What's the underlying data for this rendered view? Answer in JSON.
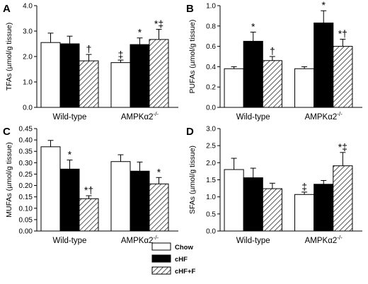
{
  "chart_data": [
    {
      "type": "bar",
      "panel_label": "A",
      "ylabel": "TFAs (µmol/g tissue)",
      "ylim": [
        0,
        4.0
      ],
      "yticks": [
        "0.0",
        "1.0",
        "2.0",
        "3.0",
        "4.0"
      ],
      "categories": [
        "Wild-type",
        "AMPKα2-/-"
      ],
      "series": [
        {
          "name": "Chow",
          "values": [
            2.55,
            1.76
          ],
          "errors": [
            0.37,
            0.1
          ],
          "annotations": [
            "",
            "‡"
          ]
        },
        {
          "name": "cHF",
          "values": [
            2.5,
            2.47
          ],
          "errors": [
            0.3,
            0.26
          ],
          "annotations": [
            "",
            "*"
          ]
        },
        {
          "name": "cHF+F",
          "values": [
            1.83,
            2.67
          ],
          "errors": [
            0.25,
            0.4
          ],
          "annotations": [
            "†",
            "*‡"
          ]
        }
      ]
    },
    {
      "type": "bar",
      "panel_label": "B",
      "ylabel": "PUFAs (µmol/g tissue)",
      "ylim": [
        0,
        1.0
      ],
      "yticks": [
        "0.0",
        "0.2",
        "0.4",
        "0.6",
        "0.8",
        "1.0"
      ],
      "categories": [
        "Wild-type",
        "AMPKα2-/-"
      ],
      "series": [
        {
          "name": "Chow",
          "values": [
            0.38,
            0.38
          ],
          "errors": [
            0.02,
            0.02
          ],
          "annotations": [
            "",
            ""
          ]
        },
        {
          "name": "cHF",
          "values": [
            0.65,
            0.83
          ],
          "errors": [
            0.09,
            0.12
          ],
          "annotations": [
            "*",
            "*"
          ]
        },
        {
          "name": "cHF+F",
          "values": [
            0.46,
            0.6
          ],
          "errors": [
            0.04,
            0.07
          ],
          "annotations": [
            "†",
            "*†"
          ]
        }
      ]
    },
    {
      "type": "bar",
      "panel_label": "C",
      "ylabel": "MUFAs (µmol/g tissue)",
      "ylim": [
        0,
        0.45
      ],
      "yticks": [
        "0.00",
        "0.05",
        "0.10",
        "0.15",
        "0.20",
        "0.25",
        "0.30",
        "0.35",
        "0.40",
        "0.45"
      ],
      "categories": [
        "Wild-type",
        "AMPKα2-/-"
      ],
      "series": [
        {
          "name": "Chow",
          "values": [
            0.37,
            0.305
          ],
          "errors": [
            0.028,
            0.03
          ],
          "annotations": [
            "",
            ""
          ]
        },
        {
          "name": "cHF",
          "values": [
            0.272,
            0.263
          ],
          "errors": [
            0.04,
            0.04
          ],
          "annotations": [
            "*",
            ""
          ]
        },
        {
          "name": "cHF+F",
          "values": [
            0.142,
            0.207
          ],
          "errors": [
            0.013,
            0.028
          ],
          "annotations": [
            "*†",
            "*"
          ]
        }
      ]
    },
    {
      "type": "bar",
      "panel_label": "D",
      "ylabel": "SFAs (µmol/g tissue)",
      "ylim": [
        0,
        3.0
      ],
      "yticks": [
        "0.0",
        "0.5",
        "1.0",
        "1.5",
        "2.0",
        "2.5",
        "3.0"
      ],
      "categories": [
        "Wild-type",
        "AMPKα2-/-"
      ],
      "series": [
        {
          "name": "Chow",
          "values": [
            1.8,
            1.07
          ],
          "errors": [
            0.33,
            0.07
          ],
          "annotations": [
            "",
            "‡"
          ]
        },
        {
          "name": "cHF",
          "values": [
            1.56,
            1.37
          ],
          "errors": [
            0.28,
            0.11
          ],
          "annotations": [
            "",
            ""
          ]
        },
        {
          "name": "cHF+F",
          "values": [
            1.24,
            1.91
          ],
          "errors": [
            0.16,
            0.39
          ],
          "annotations": [
            "",
            "*‡"
          ]
        }
      ]
    }
  ],
  "legend": {
    "items": [
      {
        "label": "Chow",
        "style": "white"
      },
      {
        "label": "cHF",
        "style": "black"
      },
      {
        "label": "cHF+F",
        "style": "hatched"
      }
    ]
  }
}
